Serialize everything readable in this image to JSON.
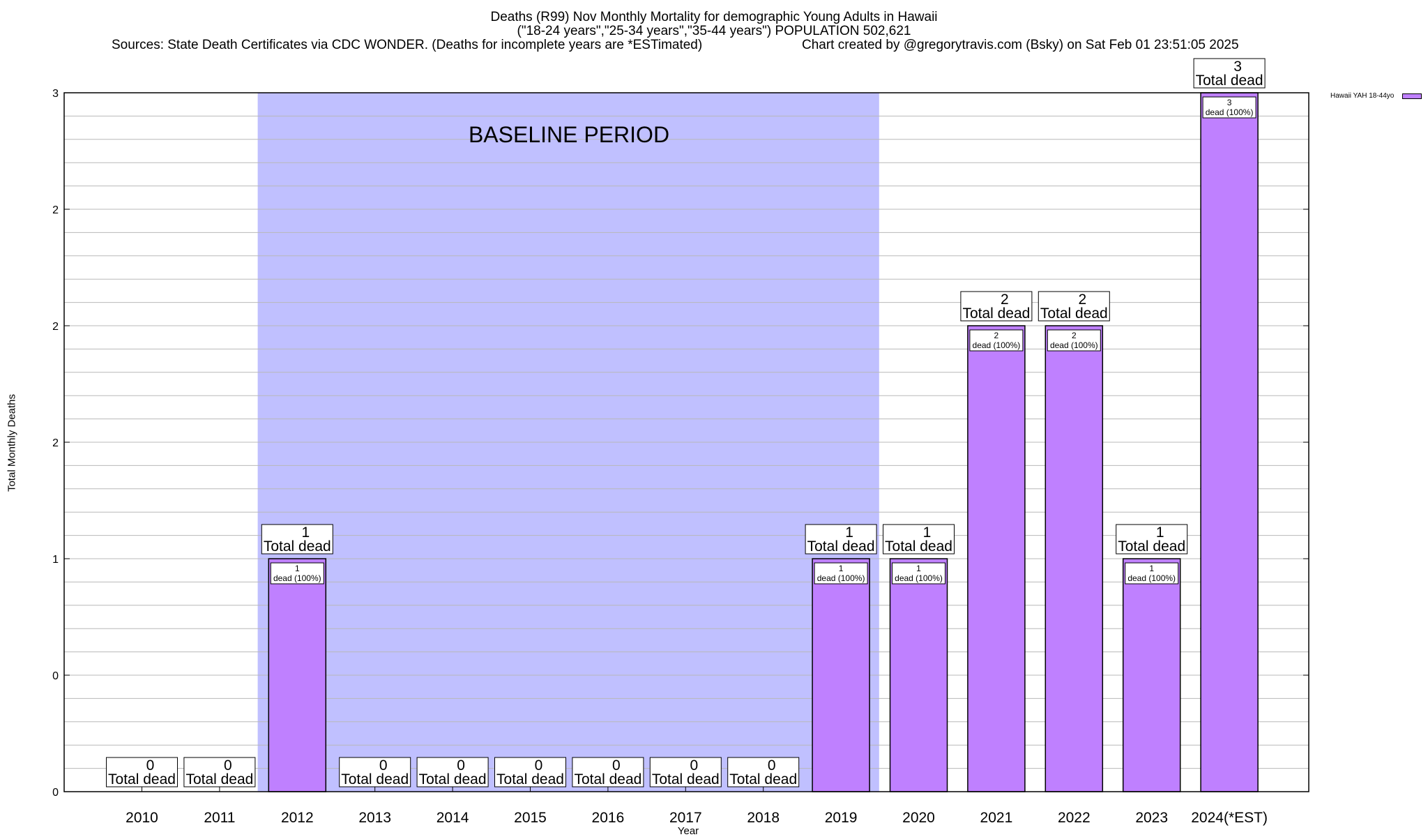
{
  "header": {
    "title": "Deaths (R99) Nov Monthly Mortality for demographic Young Adults in Hawaii",
    "subtitle": "(\"18-24 years\",\"25-34 years\",\"35-44 years\") POPULATION 502,621",
    "sources": "Sources: State Death Certificates via CDC WONDER. (Deaths for incomplete years are *ESTimated)",
    "credit": "Chart created by @gregorytravis.com (Bsky) on Sat Feb 01 23:51:05 2025"
  },
  "colors": {
    "bar": "#bf80ff",
    "baseline_band": "#c0c0ff",
    "grid": "#b8b8b8"
  },
  "chart_data": {
    "type": "bar",
    "title": "Deaths (R99) Nov Monthly Mortality for demographic Young Adults in Hawaii",
    "xlabel": "Year",
    "ylabel": "Total Monthly Deaths",
    "ylim": [
      0,
      3
    ],
    "y_tick_values": [
      0,
      0.5,
      1,
      1.5,
      2,
      2.5,
      3
    ],
    "y_tick_labels": [
      "0",
      "0",
      "1",
      "2",
      "2",
      "2",
      "3"
    ],
    "categories": [
      "2010",
      "2011",
      "2012",
      "2013",
      "2014",
      "2015",
      "2016",
      "2017",
      "2018",
      "2019",
      "2020",
      "2021",
      "2022",
      "2023",
      "2024(*EST)"
    ],
    "series": [
      {
        "name": "Hawaii YAH 18-44yo",
        "values": [
          0,
          0,
          1,
          0,
          0,
          0,
          0,
          0,
          0,
          1,
          1,
          2,
          2,
          1,
          3
        ]
      }
    ],
    "top_label_suffix": "Total dead",
    "inner_label_suffix": "dead (100%)",
    "baseline_period": {
      "label": "BASELINE PERIOD",
      "from": "2012",
      "to": "2019"
    },
    "legend": "top-right",
    "grid": true
  }
}
